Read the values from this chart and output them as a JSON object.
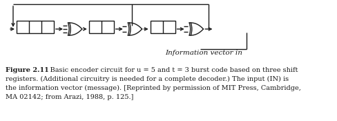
{
  "bg_color": "#ffffff",
  "line_color": "#1a1a1a",
  "text_color": "#1a1a1a",
  "info_label": "Information vector in",
  "caption_bold": "Figure 2.11",
  "caption_line1": "    Basic encoder circuit for u = 5 and t = 3 burst code based on three shift",
  "caption_line2": "registers. (Additional circuitry is needed for a complete decoder.) The input (IN) is",
  "caption_line3": "the information vector (message). [Reprinted by permission of MIT Press, Cambridge,",
  "caption_line4": "MA 02142; from Arazi, 1988, p. 125.]",
  "fig_width": 4.89,
  "fig_height": 1.75,
  "dpi": 100
}
